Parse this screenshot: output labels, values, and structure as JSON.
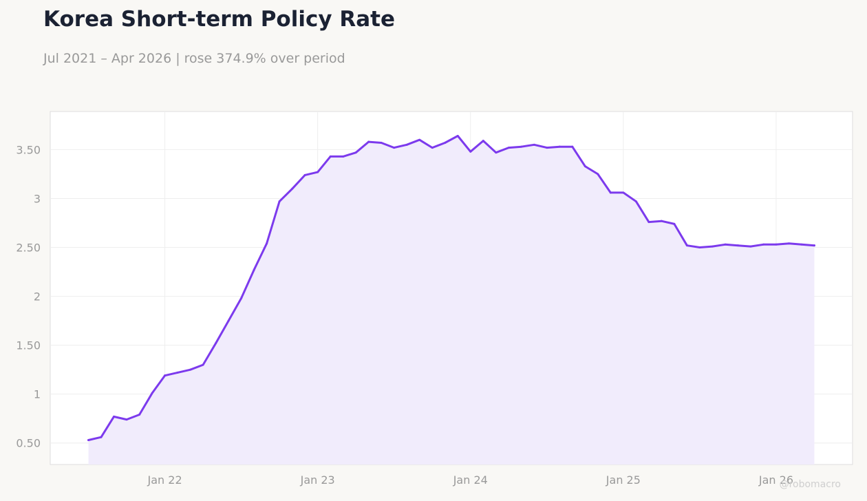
{
  "header": {
    "title": "Korea Short-term Policy Rate",
    "subtitle": "Jul 2021 – Apr 2026 | rose 374.9% over period"
  },
  "watermark": "@robomacro",
  "colors": {
    "line": "#7c3aed",
    "fill": "#f1ecfc",
    "plot_bg": "#ffffff",
    "page_bg": "#f9f8f5",
    "grid": "#eeeeee",
    "tick_text": "#999999"
  },
  "chart_data": {
    "type": "area",
    "x_start": "2021-07",
    "x_step": "month",
    "xlim": [
      "2021-04",
      "2026-07"
    ],
    "ylim": [
      0.28,
      3.89
    ],
    "grid": true,
    "legend": "none",
    "y_ticks": [
      0.5,
      1,
      1.5,
      2,
      2.5,
      3,
      3.5
    ],
    "y_tick_labels": [
      "0.50",
      "1",
      "1.50",
      "2",
      "2.50",
      "3",
      "3.50"
    ],
    "x_ticks": [
      "2022-01",
      "2023-01",
      "2024-01",
      "2025-01",
      "2026-01"
    ],
    "x_tick_labels": [
      "Jan 22",
      "Jan 23",
      "Jan 24",
      "Jan 25",
      "Jan 26"
    ],
    "values": [
      0.53,
      0.56,
      0.77,
      0.74,
      0.79,
      1.01,
      1.19,
      1.22,
      1.25,
      1.3,
      1.52,
      1.75,
      1.98,
      2.27,
      2.54,
      2.97,
      3.1,
      3.24,
      3.27,
      3.43,
      3.43,
      3.47,
      3.58,
      3.57,
      3.52,
      3.55,
      3.6,
      3.52,
      3.57,
      3.64,
      3.48,
      3.59,
      3.47,
      3.52,
      3.53,
      3.55,
      3.52,
      3.53,
      3.53,
      3.33,
      3.25,
      3.06,
      3.06,
      2.97,
      2.76,
      2.77,
      2.74,
      2.52,
      2.5,
      2.51,
      2.53,
      2.52,
      2.51,
      2.53,
      2.53,
      2.54,
      2.53,
      2.52
    ]
  }
}
